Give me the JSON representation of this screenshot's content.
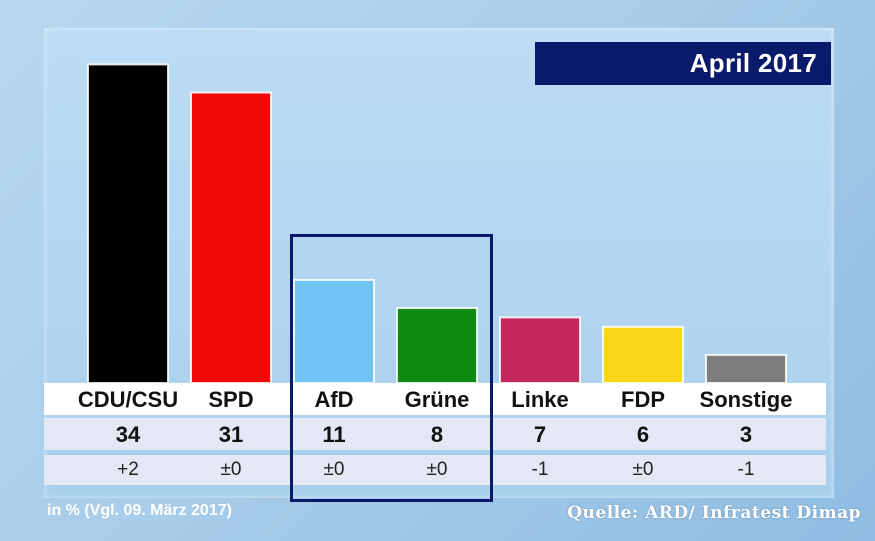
{
  "period_label": "April 2017",
  "footnote": "in % (Vgl. 09. März 2017)",
  "source": "Quelle: ARD/ Infratest Dimap",
  "chart_data": {
    "type": "bar",
    "title": "",
    "xlabel": "",
    "ylabel": "",
    "ylim": [
      0,
      36
    ],
    "grid": false,
    "categories": [
      "CDU/CSU",
      "SPD",
      "AfD",
      "Grüne",
      "Linke",
      "FDP",
      "Sonstige"
    ],
    "values": [
      34,
      31,
      11,
      8,
      7,
      6,
      3
    ],
    "value_labels": [
      "34",
      "31",
      "11",
      "8",
      "7",
      "6",
      "3"
    ],
    "changes": [
      "+2",
      "±0",
      "±0",
      "±0",
      "-1",
      "±0",
      "-1"
    ],
    "colors": [
      "#000000",
      "#f20a0a",
      "#6fc3f7",
      "#0d8a10",
      "#c4285c",
      "#f8d61a",
      "#7d7d7d"
    ],
    "highlighted_categories": [
      "AfD",
      "Grüne"
    ]
  }
}
